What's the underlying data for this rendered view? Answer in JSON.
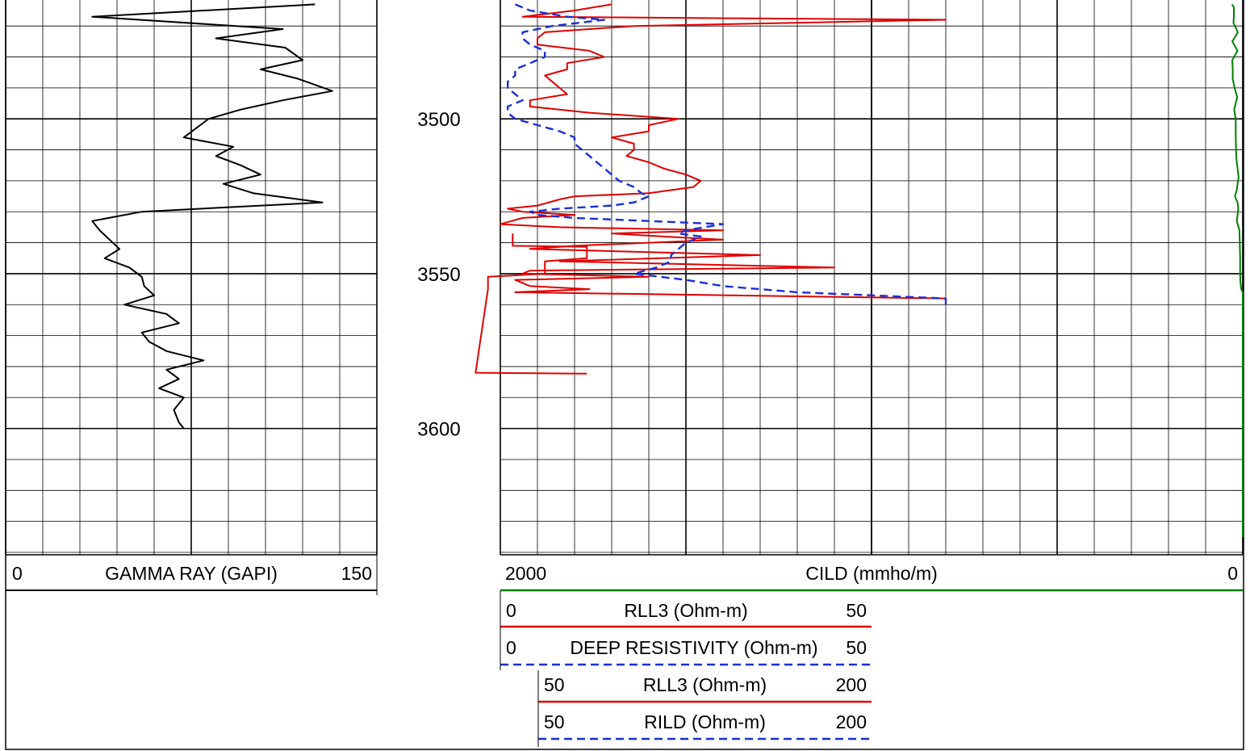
{
  "chart_data": {
    "type": "line",
    "depth_axis": {
      "tick_labels": [
        "3500",
        "3550",
        "3600"
      ],
      "major_every": 50,
      "minor_every": 10,
      "range": [
        3463,
        3640
      ]
    },
    "tracks": [
      {
        "name": "gamma",
        "header": {
          "left": "0",
          "title": "GAMMA RAY (GAPI)",
          "right": "150"
        },
        "xlim": [
          0,
          150
        ],
        "grid": "linear",
        "series": [
          {
            "name": "GAMMA RAY",
            "color": "#000000",
            "dash": "solid",
            "depth": [
              3463,
              3467,
              3471,
              3474,
              3477,
              3481,
              3484,
              3487,
              3491,
              3494,
              3497,
              3500,
              3503,
              3506,
              3509,
              3512,
              3515,
              3518,
              3521,
              3524,
              3527,
              3530,
              3533,
              3536,
              3539,
              3542,
              3545,
              3548,
              3551,
              3554,
              3557,
              3560,
              3563,
              3566,
              3569,
              3572,
              3575,
              3578,
              3581,
              3584,
              3587,
              3590,
              3594,
              3598,
              3600
            ],
            "values": [
              125,
              35,
              112,
              85,
              113,
              120,
              103,
              118,
              132,
              112,
              95,
              82,
              77,
              72,
              92,
              85,
              95,
              103,
              88,
              100,
              128,
              55,
              35,
              38,
              42,
              46,
              40,
              50,
              55,
              56,
              60,
              48,
              65,
              70,
              55,
              58,
              65,
              80,
              65,
              70,
              62,
              72,
              68,
              70,
              72
            ]
          }
        ]
      },
      {
        "name": "resistivity",
        "header": {
          "left": "2000",
          "title": "CILD (mmho/m)",
          "right": "0"
        },
        "grid": "log",
        "series": [
          {
            "name": "CILD",
            "color": "#008000",
            "dash": "solid",
            "scale": [
              2000,
              0
            ],
            "depth": [
              3463,
              3464,
              3467,
              3469,
              3472,
              3475,
              3478,
              3481,
              3484,
              3487,
              3490,
              3493,
              3497,
              3500,
              3505,
              3510,
              3513,
              3516,
              3519,
              3521,
              3523,
              3525,
              3527,
              3529,
              3531,
              3533,
              3536,
              3540,
              3545,
              3550,
              3553,
              3555,
              3556,
              3560,
              3580,
              3600,
              3620,
              3635
            ],
            "values": [
              29,
              24,
              24,
              25,
              13,
              28,
              14,
              28,
              27,
              27,
              22,
              15,
              23,
              19,
              19,
              18,
              17,
              14,
              11,
              14,
              16,
              21,
              14,
              12,
              14,
              16,
              9,
              8,
              7,
              7,
              6,
              4,
              0,
              0,
              0,
              0,
              0,
              0
            ]
          },
          {
            "name": "RLL3",
            "color": "#e00000",
            "dash": "solid",
            "scale": [
              0,
              50
            ],
            "depth": [
              3463,
              3465,
              3467,
              3468,
              3470,
              3472,
              3474,
              3476,
              3478,
              3480,
              3482,
              3484,
              3486,
              3488,
              3490,
              3492,
              3494,
              3496,
              3498,
              3500,
              3502,
              3504,
              3506,
              3508,
              3510,
              3512,
              3514,
              3516,
              3518,
              3520,
              3522,
              3524,
              3525,
              3526,
              3528,
              3529,
              3530,
              3531,
              3532,
              3534,
              3535,
              3536,
              3537,
              3538,
              3539,
              3541,
              3542,
              3544,
              3546,
              3548,
              3549,
              3550,
              3551,
              3552,
              3554,
              3555,
              3556,
              3558,
              3558.5
            ],
            "values": [
              15,
              10,
              3,
              60,
              18,
              6,
              5,
              5,
              12,
              14,
              9,
              9,
              6,
              7,
              8,
              9,
              4,
              4,
              12,
              24,
              20,
              20,
              15,
              18,
              18,
              17,
              20,
              22,
              25,
              27,
              26,
              20,
              10,
              8,
              5,
              1,
              3,
              10,
              3,
              0,
              8,
              30,
              15,
              22,
              30,
              10,
              4,
              35,
              8,
              45,
              4,
              3,
              20,
              2,
              4,
              12,
              2,
              60,
              60
            ]
          },
          {
            "name": "DEEP RESISTIVITY",
            "color": "#1a2fd6",
            "dash": "dashed",
            "scale": [
              0,
              50
            ],
            "depth": [
              3463,
              3465,
              3467,
              3468,
              3470,
              3472,
              3474,
              3476,
              3478,
              3480,
              3482,
              3484,
              3486,
              3488,
              3490,
              3492,
              3494,
              3496,
              3498,
              3500,
              3502,
              3504,
              3506,
              3508,
              3510,
              3512,
              3514,
              3516,
              3518,
              3520,
              3522,
              3524,
              3525,
              3526,
              3527,
              3528,
              3529,
              3530,
              3531,
              3532,
              3533,
              3534,
              3536,
              3537,
              3538,
              3540,
              3542,
              3544,
              3546,
              3548,
              3550,
              3552,
              3554,
              3556,
              3558,
              3560
            ],
            "values": [
              2,
              4,
              9,
              14,
              7,
              3,
              3,
              4,
              6,
              6,
              4,
              2,
              2,
              1,
              1,
              2,
              3,
              1,
              1,
              2,
              5,
              8,
              10,
              10,
              11,
              12,
              13,
              14,
              15,
              16,
              18,
              19,
              20,
              19,
              18,
              15,
              8,
              4,
              5,
              10,
              20,
              30,
              25,
              24,
              27,
              25,
              24,
              23,
              23,
              21,
              18,
              25,
              30,
              40,
              60,
              60
            ]
          },
          {
            "name": "RLL3 (Ohm-m)",
            "color": "#e00000",
            "dash": "solid",
            "scale": [
              50,
              200
            ],
            "depth": [
              3537,
              3541,
              3541.3,
              3545,
              3546,
              3550,
              3551,
              3555,
              3582,
              3582.3
            ],
            "values": [
              55,
              55,
              85,
              85,
              68,
              68,
              45,
              45,
              40,
              85
            ]
          }
        ]
      }
    ],
    "legend_rows": [
      {
        "left": "0",
        "title": "RLL3 (Ohm-m)",
        "right": "50",
        "color": "#e00000",
        "dash": "solid"
      },
      {
        "left": "0",
        "title": "DEEP RESISTIVITY (Ohm-m)",
        "right": "50",
        "color": "#1a2fd6",
        "dash": "dashed"
      },
      {
        "left": "50",
        "title": "RLL3 (Ohm-m)",
        "right": "200",
        "color": "#e00000",
        "dash": "solid"
      },
      {
        "left": "50",
        "title": "RILD (Ohm-m)",
        "right": "200",
        "color": "#1a2fd6",
        "dash": "dashed"
      }
    ]
  }
}
